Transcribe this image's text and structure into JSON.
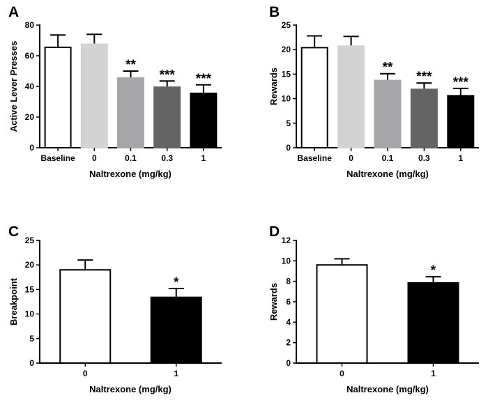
{
  "chart_data": [
    {
      "panel": "A",
      "type": "bar",
      "xlabel": "Naltrexone (mg/kg)",
      "ylabel": "Active Lever Presses",
      "ylim": [
        0,
        80
      ],
      "yticks": [
        "0",
        "20",
        "40",
        "60",
        "80"
      ],
      "categories": [
        "Baseline",
        "0",
        "0.1",
        "0.3",
        "1"
      ],
      "values": [
        65.5,
        67.5,
        45.5,
        39.5,
        35.5
      ],
      "errors": [
        8.0,
        6.5,
        4.5,
        4.0,
        5.5
      ],
      "significance": [
        "",
        "",
        "**",
        "***",
        "***"
      ],
      "colors": [
        "#ffffff",
        "#d3d3d3",
        "#a6a6a8",
        "#646464",
        "#000000"
      ]
    },
    {
      "panel": "B",
      "type": "bar",
      "xlabel": "Naltrexone (mg/kg)",
      "ylabel": "Rewards",
      "ylim": [
        0,
        25
      ],
      "yticks": [
        "0",
        "5",
        "10",
        "15",
        "20",
        "25"
      ],
      "categories": [
        "Baseline",
        "0",
        "0.1",
        "0.3",
        "1"
      ],
      "values": [
        20.4,
        20.7,
        13.7,
        11.9,
        10.6
      ],
      "errors": [
        2.4,
        2.0,
        1.4,
        1.3,
        1.5
      ],
      "significance": [
        "",
        "",
        "**",
        "***",
        "***"
      ],
      "colors": [
        "#ffffff",
        "#d3d3d3",
        "#a6a6a8",
        "#646464",
        "#000000"
      ]
    },
    {
      "panel": "C",
      "type": "bar",
      "xlabel": "Naltrexone (mg/kg)",
      "ylabel": "Breakpoint",
      "ylim": [
        0,
        25
      ],
      "yticks": [
        "0",
        "5",
        "10",
        "15",
        "20",
        "25"
      ],
      "categories": [
        "0",
        "1"
      ],
      "values": [
        19.0,
        13.4
      ],
      "errors": [
        2.0,
        1.8
      ],
      "significance": [
        "",
        "*"
      ],
      "colors": [
        "#ffffff",
        "#000000"
      ]
    },
    {
      "panel": "D",
      "type": "bar",
      "xlabel": "Naltrexone (mg/kg)",
      "ylabel": "Rewards",
      "ylim": [
        0,
        12
      ],
      "yticks": [
        "0",
        "2",
        "4",
        "6",
        "8",
        "10",
        "12"
      ],
      "categories": [
        "0",
        "1"
      ],
      "values": [
        9.6,
        7.85
      ],
      "errors": [
        0.6,
        0.6
      ],
      "significance": [
        "",
        "*"
      ],
      "colors": [
        "#ffffff",
        "#000000"
      ]
    }
  ]
}
